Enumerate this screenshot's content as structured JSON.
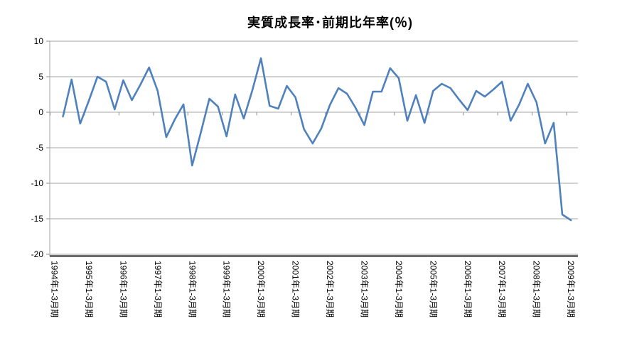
{
  "chart_data": {
    "type": "line",
    "title": "実質成長率･前期比年率(％)",
    "legend": "none",
    "grid": "horizontal",
    "series_name": "実質成長率",
    "series_color": "#4F81BD",
    "ylim": [
      -20,
      10
    ],
    "ytick_step": 5,
    "y_tick_labels": [
      "10",
      "5",
      "0",
      "-5",
      "-10",
      "-15",
      "-20"
    ],
    "x_axis_labels": [
      "1994年1-3月期",
      "1995年1-3月期",
      "1996年1-3月期",
      "1997年1-3月期",
      "1998年1-3月期",
      "1999年1-3月期",
      "2000年1-3月期",
      "2001年1-3月期",
      "2002年1-3月期",
      "2003年1-3月期",
      "2004年1-3月期",
      "2005年1-3月期",
      "2006年1-3月期",
      "2007年1-3月期",
      "2008年1-3月期",
      "2009年1-3月期"
    ],
    "x_quarters": [
      "1994Q2",
      "1994Q3",
      "1994Q4",
      "1995Q1",
      "1995Q2",
      "1995Q3",
      "1995Q4",
      "1996Q1",
      "1996Q2",
      "1996Q3",
      "1996Q4",
      "1997Q1",
      "1997Q2",
      "1997Q3",
      "1997Q4",
      "1998Q1",
      "1998Q2",
      "1998Q3",
      "1998Q4",
      "1999Q1",
      "1999Q2",
      "1999Q3",
      "1999Q4",
      "2000Q1",
      "2000Q2",
      "2000Q3",
      "2000Q4",
      "2001Q1",
      "2001Q2",
      "2001Q3",
      "2001Q4",
      "2002Q1",
      "2002Q2",
      "2002Q3",
      "2002Q4",
      "2003Q1",
      "2003Q2",
      "2003Q3",
      "2003Q4",
      "2004Q1",
      "2004Q2",
      "2004Q3",
      "2004Q4",
      "2005Q1",
      "2005Q2",
      "2005Q3",
      "2005Q4",
      "2006Q1",
      "2006Q2",
      "2006Q3",
      "2006Q4",
      "2007Q1",
      "2007Q2",
      "2007Q3",
      "2007Q4",
      "2008Q1",
      "2008Q2",
      "2008Q3",
      "2008Q4",
      "2009Q1"
    ],
    "values": [
      -0.6,
      4.6,
      -1.6,
      1.6,
      5.0,
      4.3,
      0.4,
      4.5,
      1.7,
      3.9,
      6.3,
      3.0,
      -3.5,
      -1.0,
      1.1,
      -7.5,
      -2.9,
      1.9,
      0.8,
      -3.4,
      2.5,
      -0.9,
      3.1,
      7.6,
      0.9,
      0.5,
      3.7,
      2.1,
      -2.4,
      -4.4,
      -2.3,
      1.0,
      3.4,
      2.6,
      0.6,
      -1.8,
      2.9,
      2.9,
      6.2,
      4.8,
      -1.2,
      2.4,
      -1.5,
      3.0,
      4.0,
      3.4,
      1.8,
      0.3,
      3.0,
      2.2,
      3.2,
      4.3,
      -1.2,
      1.1,
      4.0,
      1.4,
      -4.4,
      -1.5,
      -14.4,
      -15.2
    ],
    "colors": {
      "gridline": "#A6A6A6",
      "axis_line": "#A6A6A6",
      "bottom_axis_line": "#4D4D4D",
      "tick": "#8C8C8C",
      "text": "#000000"
    }
  }
}
